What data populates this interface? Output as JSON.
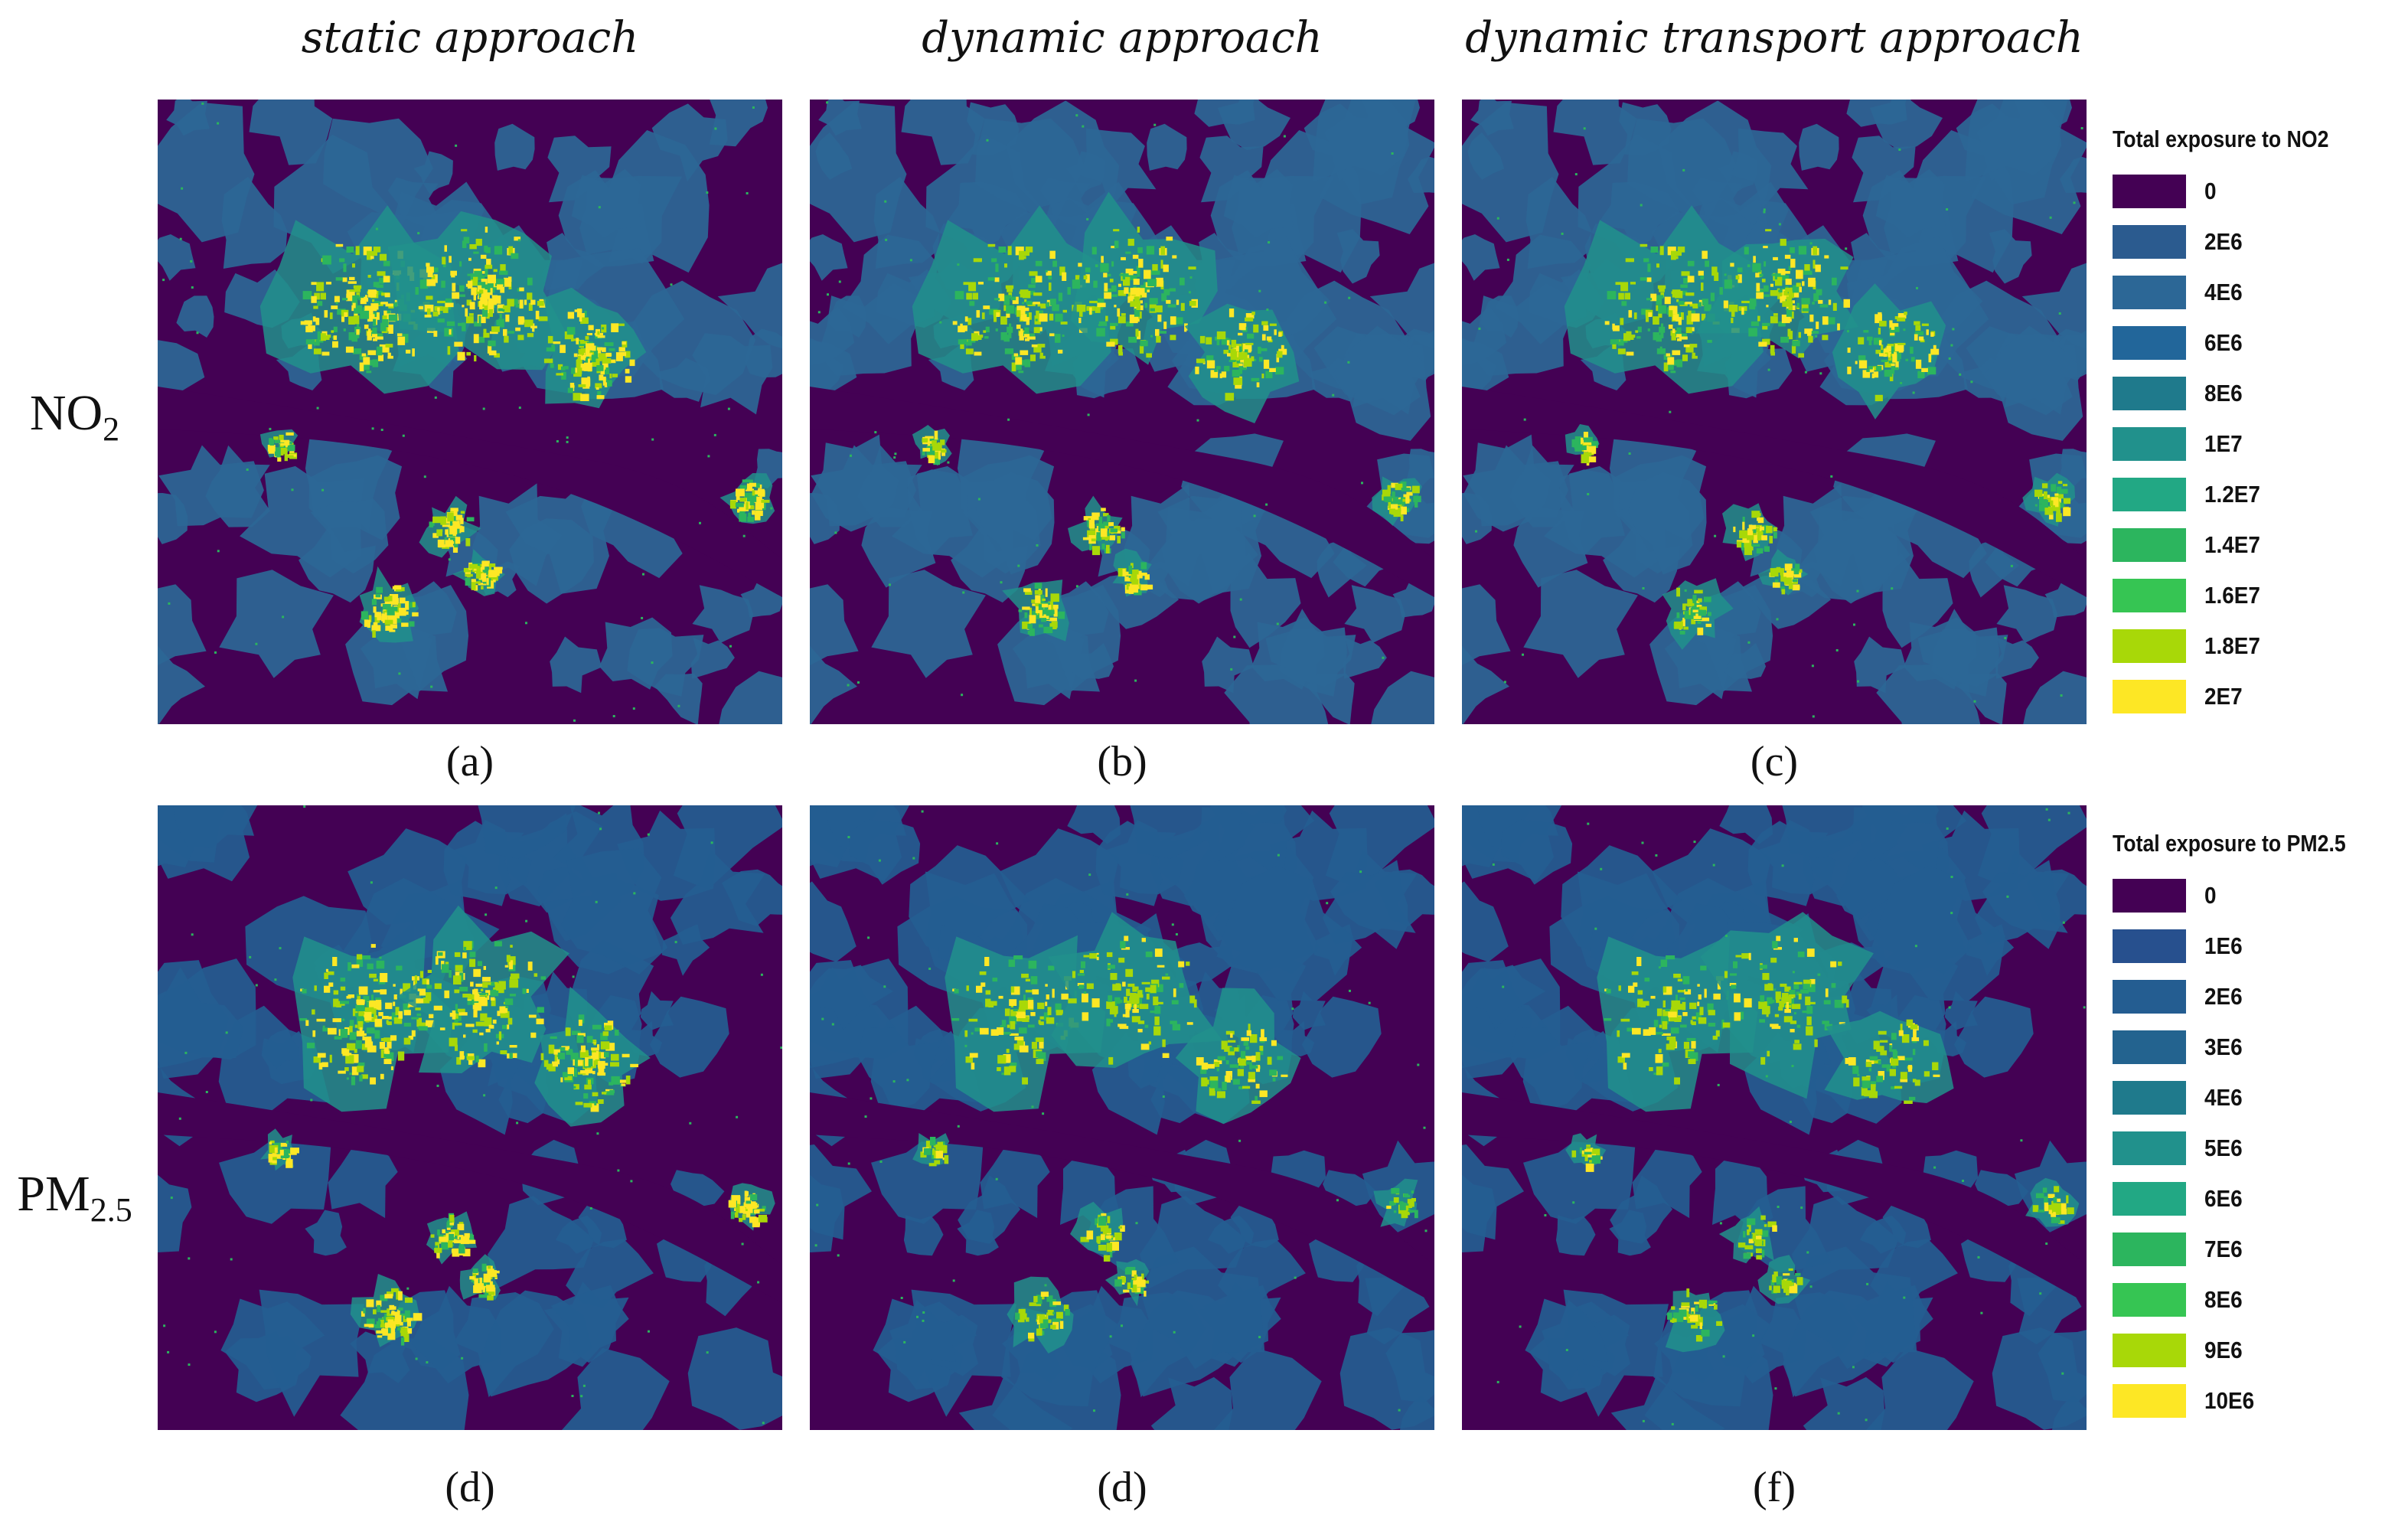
{
  "column_titles": [
    "static approach",
    "dynamic approach",
    "dynamic transport approach"
  ],
  "rows": [
    {
      "label_main": "NO",
      "label_sub": "2",
      "panels": [
        {
          "label": "(a)",
          "intensity": 1.0
        },
        {
          "label": "(b)",
          "intensity": 0.8
        },
        {
          "label": "(c)",
          "intensity": 0.75
        }
      ],
      "legend": {
        "title": "Total exposure to NO2",
        "items": [
          {
            "value": "0",
            "color": "#440154"
          },
          {
            "value": "2E6",
            "color": "#2b5b8f"
          },
          {
            "value": "4E6",
            "color": "#2c6796"
          },
          {
            "value": "6E6",
            "color": "#22669a"
          },
          {
            "value": "8E6",
            "color": "#1f7a8c"
          },
          {
            "value": "1E7",
            "color": "#21918c"
          },
          {
            "value": "1.2E7",
            "color": "#22a884"
          },
          {
            "value": "1.4E7",
            "color": "#2cb55e"
          },
          {
            "value": "1.6E7",
            "color": "#36c553"
          },
          {
            "value": "1.8E7",
            "color": "#a8d808"
          },
          {
            "value": "2E7",
            "color": "#fde725"
          }
        ]
      }
    },
    {
      "label_main": "PM",
      "label_sub": "2.5",
      "panels": [
        {
          "label": "(d)",
          "intensity": 0.9
        },
        {
          "label": "(d)",
          "intensity": 0.55
        },
        {
          "label": "(f)",
          "intensity": 0.5
        }
      ],
      "legend": {
        "title": "Total exposure to PM2.5",
        "items": [
          {
            "value": "0",
            "color": "#440154"
          },
          {
            "value": "1E6",
            "color": "#27508e"
          },
          {
            "value": "2E6",
            "color": "#245d91"
          },
          {
            "value": "3E6",
            "color": "#23638f"
          },
          {
            "value": "4E6",
            "color": "#1f7a8c"
          },
          {
            "value": "5E6",
            "color": "#21918c"
          },
          {
            "value": "6E6",
            "color": "#22a884"
          },
          {
            "value": "7E6",
            "color": "#2cb55e"
          },
          {
            "value": "8E6",
            "color": "#36c553"
          },
          {
            "value": "9E6",
            "color": "#a8d808"
          },
          {
            "value": "10E6",
            "color": "#fde725"
          }
        ]
      }
    }
  ]
}
